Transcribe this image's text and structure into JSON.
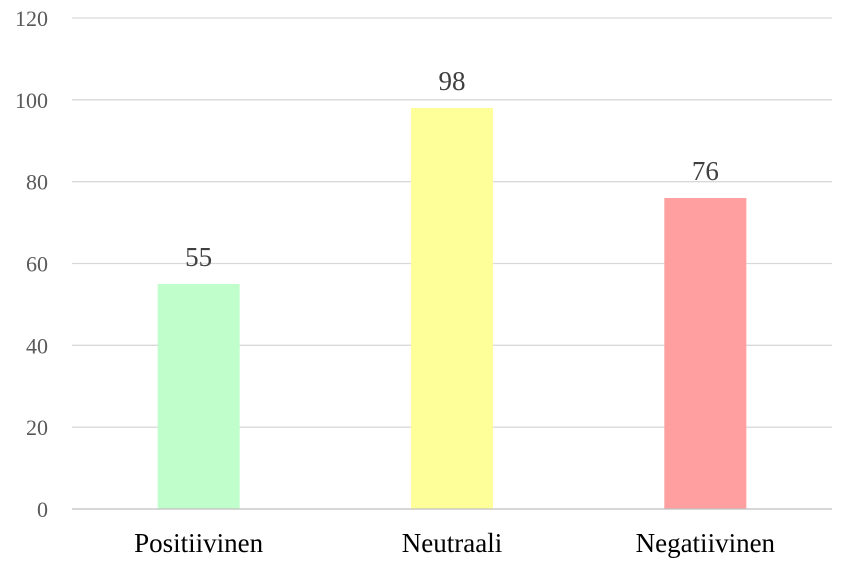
{
  "chart_data": {
    "type": "bar",
    "categories": [
      "Positiivinen",
      "Neutraali",
      "Negatiivinen"
    ],
    "values": [
      55,
      98,
      76
    ],
    "bar_colors": [
      "#c0ffcc",
      "#ffff99",
      "#ff9f9f"
    ],
    "title": "",
    "xlabel": "",
    "ylabel": "",
    "ylim": [
      0,
      120
    ],
    "y_ticks": [
      0,
      20,
      40,
      60,
      80,
      100,
      120
    ],
    "grid": true,
    "legend": "none",
    "data_labels": true
  }
}
